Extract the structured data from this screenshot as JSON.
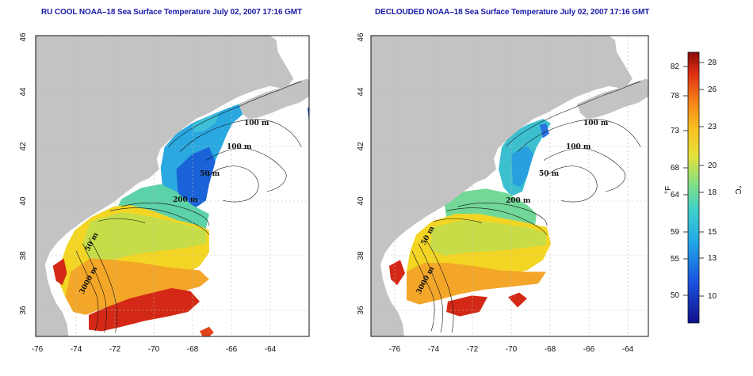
{
  "maps": [
    {
      "title": "RU COOL NOAA–18 Sea Surface Temperature July 02, 2007 17:16 GMT",
      "variant": "cloud-masked"
    },
    {
      "title": "DECLOUDED NOAA–18 Sea Surface Temperature July 02, 2007 17:16 GMT",
      "variant": "declouded"
    }
  ],
  "axes": {
    "x_ticks": [
      "-76",
      "-74",
      "-72",
      "-70",
      "-68",
      "-66",
      "-64"
    ],
    "y_ticks": [
      "36",
      "38",
      "40",
      "42",
      "44",
      "46"
    ]
  },
  "contour_labels": [
    "100 m",
    "100 m",
    "50 m",
    "200 m",
    "50 m",
    "3000 m"
  ],
  "colorbar": {
    "f_label": "°F",
    "c_label": "°C",
    "f_ticks": [
      "82",
      "78",
      "73",
      "68",
      "64",
      "59",
      "55",
      "50"
    ],
    "c_ticks": [
      "28",
      "26",
      "23",
      "20",
      "18",
      "15",
      "13",
      "10"
    ]
  },
  "colors": {
    "land": "#c3c3c3",
    "title": "#1a1aa8",
    "warm": "#cc1a10",
    "mid": "#f5d020",
    "cool": "#38c4d8",
    "cold": "#1a52d8"
  }
}
